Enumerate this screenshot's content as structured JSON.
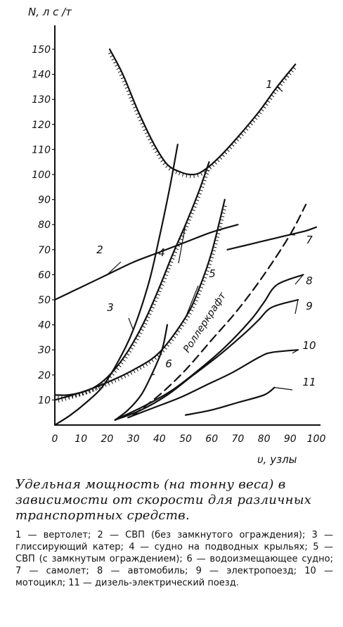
{
  "chart_data": {
    "type": "line",
    "ylabel": "N, л с /т",
    "xlabel": "υ, узлы",
    "xlim": [
      0,
      100
    ],
    "ylim": [
      0,
      155
    ],
    "x_ticks": [
      0,
      10,
      20,
      30,
      40,
      50,
      60,
      70,
      80,
      90,
      100
    ],
    "y_ticks": [
      10,
      20,
      30,
      40,
      50,
      60,
      70,
      80,
      90,
      100,
      110,
      120,
      130,
      140,
      150
    ],
    "grid": false,
    "annotation": "Роллеркрафт",
    "series": [
      {
        "name": "1",
        "x": [
          21,
          26,
          32,
          38,
          43,
          48,
          52,
          56,
          62,
          70,
          78,
          85,
          92
        ],
        "y": [
          150,
          140,
          125,
          112,
          104,
          101,
          100,
          101,
          106,
          115,
          125,
          135,
          144
        ]
      },
      {
        "name": "2",
        "x": [
          0,
          5,
          10,
          20,
          30,
          40,
          50,
          60,
          70
        ],
        "y": [
          50,
          52.5,
          55,
          60,
          65,
          69,
          73,
          77,
          80
        ]
      },
      {
        "name": "3",
        "x": [
          0,
          6,
          12,
          18,
          24,
          30,
          36,
          40,
          44,
          47
        ],
        "y": [
          0,
          4,
          9,
          15,
          25,
          38,
          57,
          75,
          95,
          112
        ]
      },
      {
        "name": "4",
        "x": [
          0,
          5,
          10,
          15,
          20,
          25,
          30,
          35,
          40,
          45,
          50,
          55,
          59
        ],
        "y": [
          12,
          12,
          13,
          15,
          19,
          25,
          33,
          43,
          55,
          68,
          80,
          93,
          105
        ]
      },
      {
        "name": "5",
        "x": [
          0,
          10,
          20,
          30,
          40,
          50,
          55,
          60,
          65
        ],
        "y": [
          10,
          13,
          17,
          22,
          29,
          43,
          54,
          69,
          90
        ]
      },
      {
        "name": "6",
        "x": [
          23,
          28,
          33,
          37,
          41,
          43
        ],
        "y": [
          2,
          6,
          12,
          20,
          30,
          40
        ]
      },
      {
        "name": "7",
        "x": [
          66,
          72,
          78,
          84,
          90,
          96,
          100
        ],
        "y": [
          70,
          71.5,
          73,
          74.5,
          76,
          77.5,
          79
        ]
      },
      {
        "name": "8",
        "x": [
          25,
          35,
          45,
          55,
          65,
          75,
          80,
          85,
          95
        ],
        "y": [
          3,
          8,
          14,
          22,
          31,
          42,
          49,
          56,
          60
        ]
      },
      {
        "name": "9",
        "x": [
          23,
          33,
          43,
          53,
          63,
          73,
          78,
          83,
          93
        ],
        "y": [
          2,
          6,
          12,
          20,
          28,
          37,
          42,
          47,
          50
        ]
      },
      {
        "name": "10",
        "x": [
          28,
          38,
          48,
          58,
          68,
          78,
          83,
          93
        ],
        "y": [
          3,
          7,
          11,
          16,
          21,
          27,
          29,
          30
        ]
      },
      {
        "name": "11",
        "x": [
          50,
          60,
          70,
          80,
          84
        ],
        "y": [
          4,
          6,
          9,
          12,
          15
        ]
      },
      {
        "name": "Роллеркрафт",
        "x": [
          30,
          40,
          50,
          60,
          70,
          80,
          90,
          96
        ],
        "y": [
          4,
          12,
          22,
          34,
          46,
          60,
          76,
          88
        ]
      }
    ]
  },
  "caption": "Удельная мощность (на тонну веса) в зависимости от скорости для различных транспортных средств.",
  "legend_text": "1 — вертолет; 2 — СВП (без замкнутого ограждения); 3 — глиссирующий катер; 4 — судно на подводных крыльях; 5 — СВП (с замкнутым ограждением); 6 — водоизмещающее судно; 7 — самолет; 8 — автомобиль; 9 — электропоезд; 10 — мотоцикл; 11 — дизель-электрический поезд."
}
